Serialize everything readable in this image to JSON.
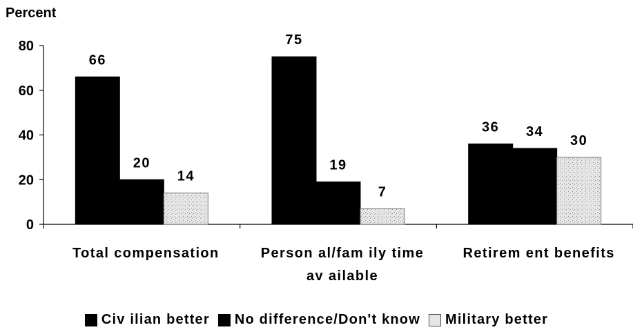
{
  "chart_data": {
    "type": "bar",
    "categories": [
      "Total compensation",
      "Person al/fam ily time available",
      "Retirem ent benefits"
    ],
    "category_lines": [
      [
        "Total compensation"
      ],
      [
        "Person al/fam ily time",
        "av ailable"
      ],
      [
        "Retirem ent benefits"
      ]
    ],
    "series": [
      {
        "name": "Civ ilian better",
        "values": [
          66,
          75,
          36
        ],
        "color": "#000000"
      },
      {
        "name": "No difference/Don't know",
        "values": [
          20,
          19,
          34
        ],
        "color": "#000000"
      },
      {
        "name": "Military better",
        "values": [
          14,
          7,
          30
        ],
        "color": "#d9d9d9"
      }
    ],
    "ylabel": "Percent",
    "yticks": [
      0,
      20,
      40,
      60,
      80
    ],
    "ylim": [
      0,
      80
    ],
    "legend_position": "bottom",
    "grid": false,
    "data_labels": true
  }
}
